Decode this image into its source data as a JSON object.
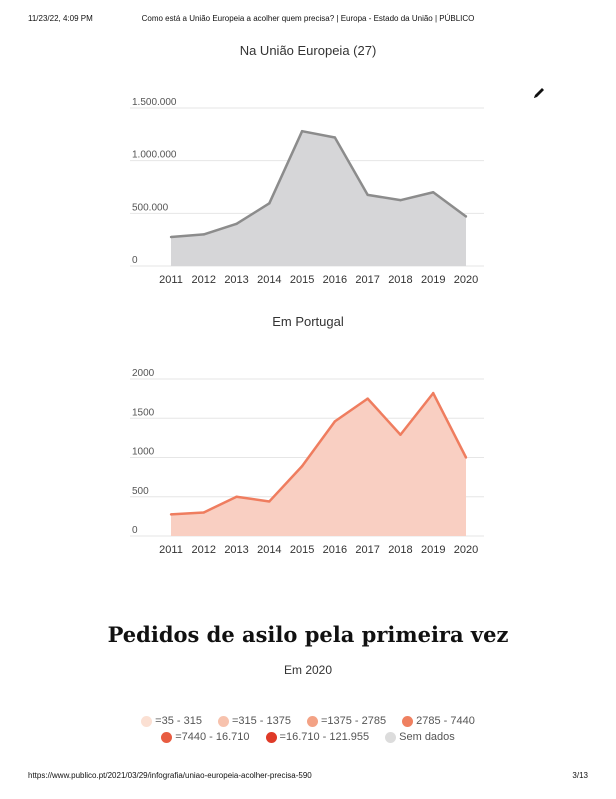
{
  "print_header": {
    "date": "11/23/22, 4:09 PM",
    "title": "Como está a União Europeia a acolher quem precisa? | Europa - Estado da União | PÚBLICO"
  },
  "print_footer": {
    "url": "https://www.publico.pt/2021/03/29/infografia/uniao-europeia-acolher-precisa-590",
    "page": "3/13"
  },
  "edit_icon": "pencil-icon",
  "chart_data": [
    {
      "type": "area",
      "title": "Na União Europeia (27)",
      "x": [
        "2011",
        "2012",
        "2013",
        "2014",
        "2015",
        "2016",
        "2017",
        "2018",
        "2019",
        "2020"
      ],
      "values": [
        275000,
        300000,
        400000,
        595000,
        1280000,
        1220000,
        675000,
        625000,
        700000,
        470000
      ],
      "ylim": [
        0,
        1500000
      ],
      "yticks": [
        0,
        500000,
        1000000,
        1500000
      ],
      "ytick_labels": [
        "0",
        "500.000",
        "1.000.000",
        "1.500.000"
      ],
      "grid": true,
      "line_color": "#8c8c8c",
      "fill_color": "#d6d6d8"
    },
    {
      "type": "area",
      "title": "Em Portugal",
      "x": [
        "2011",
        "2012",
        "2013",
        "2014",
        "2015",
        "2016",
        "2017",
        "2018",
        "2019",
        "2020"
      ],
      "values": [
        275,
        300,
        500,
        440,
        890,
        1460,
        1750,
        1290,
        1820,
        1000
      ],
      "ylim": [
        0,
        2000
      ],
      "yticks": [
        0,
        500,
        1000,
        1500,
        2000
      ],
      "ytick_labels": [
        "0",
        "500",
        "1000",
        "1500",
        "2000"
      ],
      "grid": true,
      "line_color": "#ef7d5f",
      "fill_color": "#f9cfc2"
    }
  ],
  "map_section": {
    "heading": "Pedidos de asilo pela primeira vez",
    "subheading": "Em 2020",
    "legend": [
      {
        "label": "=35 - 315",
        "color": "#fbe0d3"
      },
      {
        "label": "=315 - 1375",
        "color": "#f7c2ad"
      },
      {
        "label": "=1375 - 2785",
        "color": "#f3a285"
      },
      {
        "label": "2785 - 7440",
        "color": "#ef8060"
      },
      {
        "label": "=7440 - 16.710",
        "color": "#e85c41"
      },
      {
        "label": "=16.710 - 121.955",
        "color": "#df3a28"
      },
      {
        "label": "Sem dados",
        "color": "#dcdcdc"
      }
    ]
  }
}
